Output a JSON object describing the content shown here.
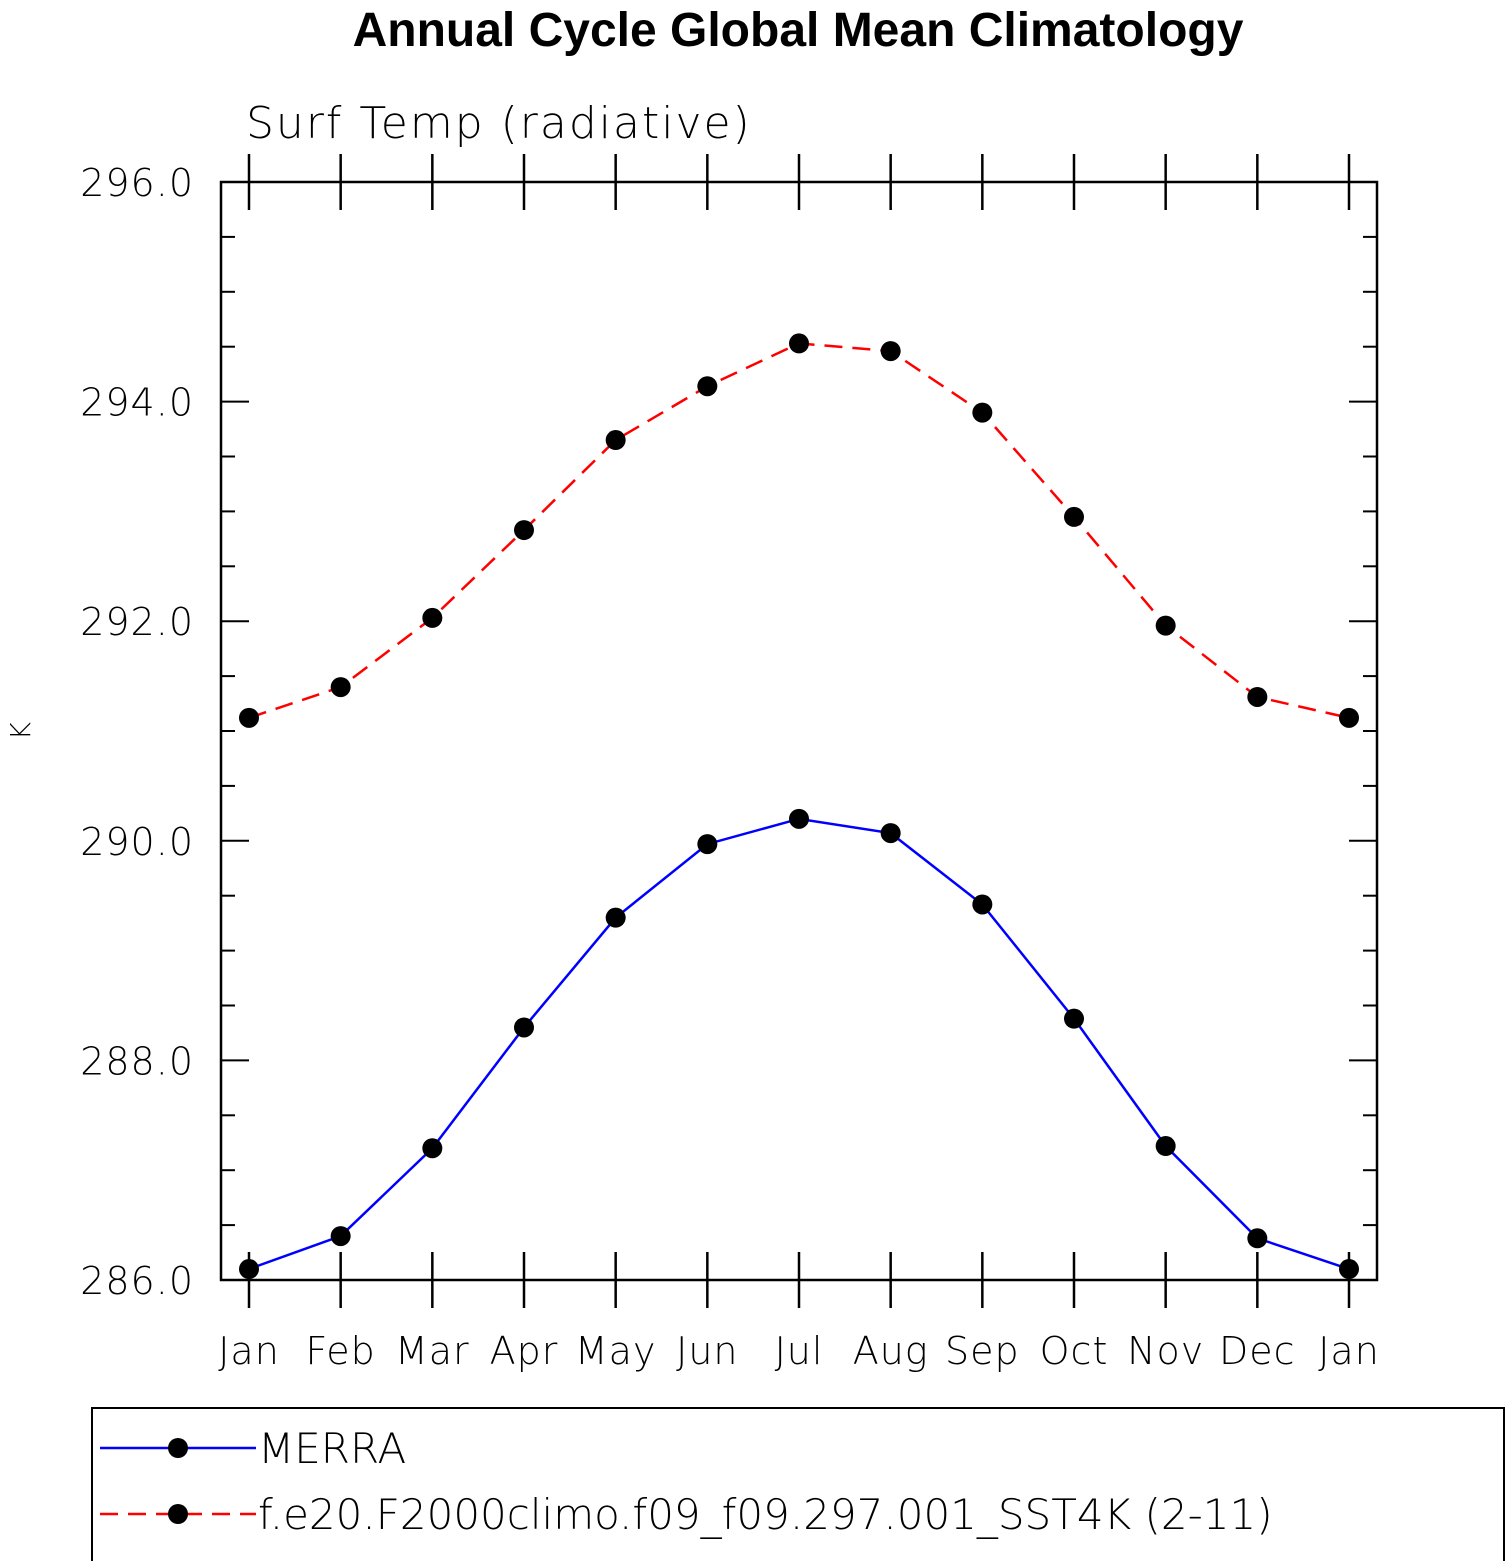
{
  "chart_data": {
    "type": "line",
    "title": "Annual Cycle Global Mean Climatology",
    "subtitle": "Surf Temp (radiative)",
    "xlabel": "",
    "ylabel": "K",
    "categories": [
      "Jan",
      "Feb",
      "Mar",
      "Apr",
      "May",
      "Jun",
      "Jul",
      "Aug",
      "Sep",
      "Oct",
      "Nov",
      "Dec",
      "Jan"
    ],
    "ylim": [
      286.0,
      296.0
    ],
    "yticks": [
      "286.0",
      "288.0",
      "290.0",
      "292.0",
      "294.0",
      "296.0"
    ],
    "yticks_values": [
      286,
      288,
      290,
      292,
      294,
      296
    ],
    "grid": false,
    "legend_position": "bottom",
    "series": [
      {
        "name": "MERRA",
        "color": "#0000ff",
        "dash": "solid",
        "marker": "filled-circle",
        "values": [
          286.1,
          286.4,
          287.2,
          288.3,
          289.3,
          289.97,
          290.2,
          290.07,
          289.42,
          288.38,
          287.22,
          286.38,
          286.1
        ]
      },
      {
        "name": "f.e20.F2000climo.f09_f09.297.001_SST4K (2-11)",
        "color": "#ff0000",
        "dash": "dashed",
        "marker": "filled-circle",
        "values": [
          291.12,
          291.4,
          292.03,
          292.83,
          293.65,
          294.14,
          294.53,
          294.46,
          293.9,
          292.95,
          291.96,
          291.31,
          291.12
        ]
      }
    ]
  }
}
